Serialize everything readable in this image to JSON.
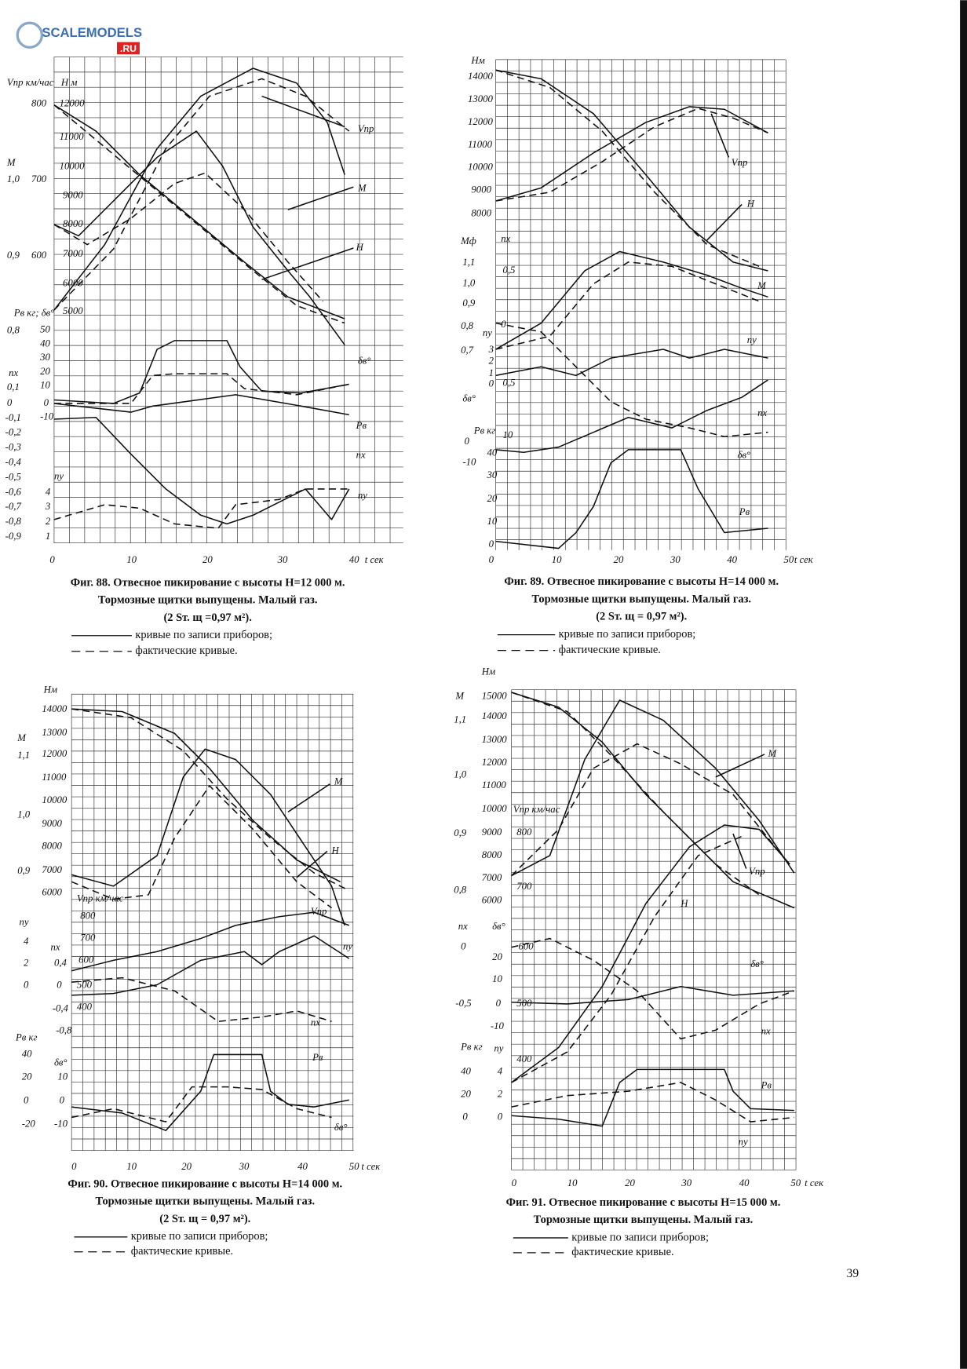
{
  "watermark": {
    "text": "SCALEMODELS",
    "suffix": ".RU"
  },
  "figures": [
    {
      "labels": [
        "Vпр км/час",
        "Н м",
        "800",
        "12000",
        "11000",
        "М",
        "10000",
        "1,0",
        "700",
        "9000",
        "8000",
        "7000",
        "0,9",
        "600",
        "6000",
        "Рв кг; δв°",
        "5000",
        "0,8",
        "50",
        "40",
        "30",
        "20",
        "пх",
        "10",
        "0,1",
        "0",
        "0",
        "-0,1",
        "-10",
        "-0,2",
        "-0,3",
        "-0,4",
        "-0,5",
        "пу",
        "-0,6",
        "4",
        "-0,7",
        "3",
        "-0,8",
        "2",
        "-0,9",
        "1",
        "Vпр",
        "М",
        "Н",
        "δв°",
        "Рв",
        "пх",
        "пу"
      ],
      "x_ticks": [
        "0",
        "10",
        "20",
        "30",
        "40"
      ],
      "x_unit": "t сек",
      "caption": [
        "Фиг. 88. Отвесное пикирование с высоты Н=12 000 м.",
        "Тормозные щитки выпущены. Малый газ.",
        "(2 Sт. щ =0,97 м²)."
      ],
      "legend": [
        "кривые по записи приборов;",
        "фактические кривые."
      ]
    },
    {
      "labels": [
        "Нм",
        "14000",
        "13000",
        "12000",
        "11000",
        "10000",
        "9000",
        "8000",
        "Мф",
        "пх",
        "1,1",
        "0,5",
        "1,0",
        "0,9",
        "0",
        "0,8",
        "пу",
        "0,7",
        "3",
        "2",
        "1",
        "0,5",
        "0",
        "δв°",
        "Рв кг",
        "10",
        "0",
        "40",
        "-10",
        "30",
        "20",
        "10",
        "0",
        "Vпр",
        "Н",
        "М",
        "пу",
        "пх",
        "δв°",
        "Рв"
      ],
      "x_ticks": [
        "0",
        "10",
        "20",
        "30",
        "40",
        "50"
      ],
      "x_unit": "t сек",
      "caption": [
        "Фиг. 89. Отвесное пикирование с высоты Н=14 000 м.",
        "Тормозные щитки выпущены. Малый газ.",
        "(2 Sт. щ = 0,97 м²)."
      ],
      "legend": [
        "кривые по записи приборов;",
        "фактические кривые."
      ]
    },
    {
      "labels": [
        "Нм",
        "14000",
        "13000",
        "М",
        "1,1",
        "12000",
        "11000",
        "10000",
        "1,0",
        "9000",
        "8000",
        "0,9",
        "7000",
        "6000",
        "Vпр км/час",
        "800",
        "пу",
        "700",
        "4",
        "пх",
        "2",
        "0,4",
        "600",
        "0",
        "0",
        "500",
        "-0,4",
        "400",
        "-0,8",
        "Рв кг",
        "40",
        "δв°",
        "20",
        "10",
        "0",
        "0",
        "-20",
        "-10",
        "М",
        "Н",
        "Vпр",
        "пу",
        "пх",
        "Рв",
        "δв°"
      ],
      "x_ticks": [
        "0",
        "10",
        "20",
        "30",
        "40",
        "50"
      ],
      "x_unit": "t сек",
      "caption": [
        "Фиг. 90. Отвесное пикирование с высоты Н=14 000 м.",
        "Тормозные щитки выпущены. Малый газ.",
        "(2 Sт. щ = 0,97 м²)."
      ],
      "legend": [
        "кривые по записи приборов;",
        "фактические кривые."
      ]
    },
    {
      "labels": [
        "Нм",
        "М",
        "15000",
        "1,1",
        "14000",
        "13000",
        "12000",
        "1,0",
        "11000",
        "10000",
        "Vпр км/час",
        "0,9",
        "9000",
        "800",
        "8000",
        "7000",
        "700",
        "0,8",
        "6000",
        "пх",
        "δв°",
        "0",
        "600",
        "20",
        "10",
        "-0,5",
        "0",
        "500",
        "-10",
        "Рв кг",
        "пу",
        "400",
        "40",
        "4",
        "20",
        "2",
        "0",
        "0",
        "М",
        "Vпр",
        "Н",
        "δв°",
        "пх",
        "Рв",
        "пу"
      ],
      "x_ticks": [
        "0",
        "10",
        "20",
        "30",
        "40",
        "50"
      ],
      "x_unit": "t сек",
      "caption": [
        "Фиг. 91. Отвесное пикирование с высоты Н=15 000 м.",
        "Тормозные щитки выпущены. Малый газ."
      ],
      "legend": [
        "кривые по записи приборов;",
        "фактические кривые."
      ]
    }
  ],
  "page_number": "39"
}
